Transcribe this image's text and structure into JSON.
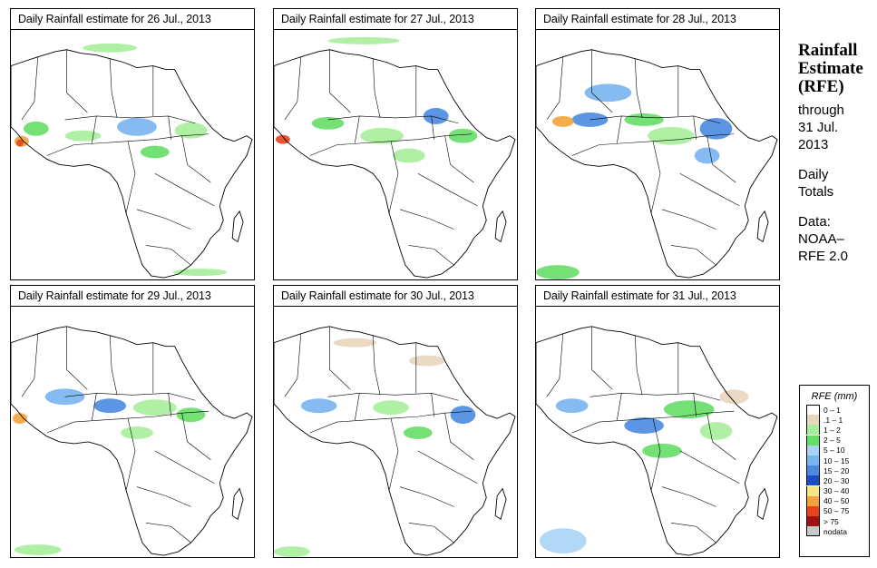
{
  "panels": [
    {
      "title": "Daily Rainfall estimate for  26 Jul., 2013"
    },
    {
      "title": "Daily Rainfall estimate for  27 Jul., 2013"
    },
    {
      "title": "Daily Rainfall estimate for  28 Jul., 2013"
    },
    {
      "title": "Daily Rainfall estimate for  29 Jul., 2013"
    },
    {
      "title": "Daily Rainfall estimate for  30 Jul., 2013"
    },
    {
      "title": "Daily Rainfall estimate for  31 Jul., 2013"
    }
  ],
  "sidebar": {
    "title_line1": "Rainfall",
    "title_line2": "Estimate",
    "title_line3": "(RFE)",
    "through": "through",
    "through_date1": "31 Jul.",
    "through_date2": "2013",
    "daily": "Daily",
    "totals": "Totals",
    "data_label": "Data:",
    "data_src1": "NOAA–",
    "data_src2": "RFE 2.0"
  },
  "legend": {
    "title": "RFE (mm)",
    "items": [
      {
        "label": "0 – 1",
        "color": "#ffffff"
      },
      {
        "label": ".1 – 1",
        "color": "#e8d6be"
      },
      {
        "label": "1 – 2",
        "color": "#a6ee9a"
      },
      {
        "label": "2 – 5",
        "color": "#66dd66"
      },
      {
        "label": "5 – 10",
        "color": "#a8d4f4"
      },
      {
        "label": "10 – 15",
        "color": "#78b4ee"
      },
      {
        "label": "15 – 20",
        "color": "#4a8ae0"
      },
      {
        "label": "20 – 30",
        "color": "#1c4cc4"
      },
      {
        "label": "30 – 40",
        "color": "#f6e68a"
      },
      {
        "label": "40 – 50",
        "color": "#f2a43a"
      },
      {
        "label": "50 – 75",
        "color": "#e8421e"
      },
      {
        "label": "> 75",
        "color": "#a01212"
      },
      {
        "label": "nodata",
        "color": "#c8c8c8"
      }
    ]
  }
}
